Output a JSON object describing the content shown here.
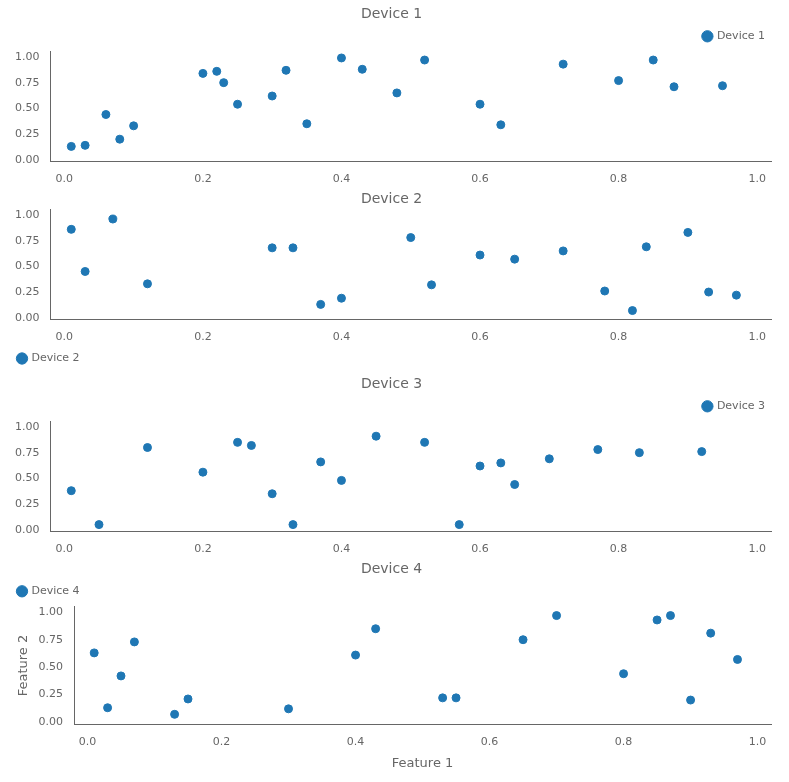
{
  "chart_data": [
    {
      "type": "scatter",
      "title": "Device 1",
      "x": [
        0.01,
        0.03,
        0.06,
        0.08,
        0.1,
        0.2,
        0.22,
        0.23,
        0.25,
        0.3,
        0.32,
        0.35,
        0.4,
        0.43,
        0.48,
        0.52,
        0.6,
        0.63,
        0.72,
        0.8,
        0.85,
        0.88,
        0.95
      ],
      "series": [
        {
          "name": "Device 1",
          "color": "#1f77b4",
          "marker": "circle",
          "values": [
            0.13,
            0.14,
            0.44,
            0.2,
            0.33,
            0.84,
            0.86,
            0.75,
            0.54,
            0.62,
            0.87,
            0.35,
            0.99,
            0.88,
            0.65,
            0.97,
            0.54,
            0.34,
            0.93,
            0.77,
            0.97,
            0.71,
            0.72
          ]
        }
      ],
      "xlim": [
        -0.02,
        1.02
      ],
      "ylim": [
        -0.02,
        1.05
      ],
      "xticks": [
        {
          "value": 0,
          "label": "0.0"
        },
        0.2,
        0.4,
        0.6,
        0.8,
        {
          "value": 1,
          "label": "1.0"
        }
      ],
      "yticks": [
        {
          "value": 0,
          "label": "0.00"
        },
        0.25,
        {
          "value": 0.5,
          "label": "0.50"
        },
        0.75,
        {
          "value": 1,
          "label": "1.00"
        }
      ],
      "grid": false,
      "legend": "upper right"
    },
    {
      "type": "scatter",
      "title": "Device 2",
      "x": [
        0.01,
        0.03,
        0.07,
        0.12,
        0.3,
        0.33,
        0.37,
        0.4,
        0.5,
        0.53,
        0.6,
        0.65,
        0.72,
        0.78,
        0.82,
        0.84,
        0.9,
        0.93,
        0.97
      ],
      "series": [
        {
          "name": "Device 2",
          "color": "#1f77b4",
          "marker": "circle",
          "values": [
            0.86,
            0.45,
            0.96,
            0.33,
            0.68,
            0.68,
            0.13,
            0.19,
            0.78,
            0.32,
            0.61,
            0.57,
            0.65,
            0.26,
            0.07,
            0.69,
            0.83,
            0.25,
            0.22
          ]
        }
      ],
      "xlim": [
        -0.02,
        1.02
      ],
      "ylim": [
        -0.02,
        1.05
      ],
      "xticks": [
        {
          "value": 0,
          "label": "0.0"
        },
        0.2,
        0.4,
        0.6,
        0.8,
        {
          "value": 1,
          "label": "1.0"
        }
      ],
      "yticks": [
        {
          "value": 0,
          "label": "0.00"
        },
        0.25,
        {
          "value": 0.5,
          "label": "0.50"
        },
        0.75,
        {
          "value": 1,
          "label": "1.00"
        }
      ],
      "grid": false,
      "legend": "lower left"
    },
    {
      "type": "scatter",
      "title": "Device 3",
      "x": [
        0.01,
        0.05,
        0.12,
        0.2,
        0.25,
        0.27,
        0.3,
        0.33,
        0.37,
        0.4,
        0.45,
        0.52,
        0.57,
        0.6,
        0.63,
        0.65,
        0.7,
        0.77,
        0.83,
        0.92
      ],
      "series": [
        {
          "name": "Device 3",
          "color": "#1f77b4",
          "marker": "circle",
          "values": [
            0.38,
            0.05,
            0.8,
            0.56,
            0.85,
            0.82,
            0.35,
            0.05,
            0.66,
            0.48,
            0.91,
            0.85,
            0.05,
            0.62,
            0.65,
            0.44,
            0.69,
            0.78,
            0.75,
            0.76
          ]
        }
      ],
      "xlim": [
        -0.02,
        1.02
      ],
      "ylim": [
        -0.02,
        1.05
      ],
      "xticks": [
        {
          "value": 0,
          "label": "0.0"
        },
        0.2,
        0.4,
        0.6,
        0.8,
        {
          "value": 1,
          "label": "1.0"
        }
      ],
      "yticks": [
        {
          "value": 0,
          "label": "0.00"
        },
        0.25,
        {
          "value": 0.5,
          "label": "0.50"
        },
        0.75,
        {
          "value": 1,
          "label": "1.00"
        }
      ],
      "grid": false,
      "legend": "upper right"
    },
    {
      "type": "scatter",
      "title": "Device 4",
      "xlabel": "Feature 1",
      "ylabel": "Feature 2",
      "x": [
        0.01,
        0.03,
        0.05,
        0.07,
        0.13,
        0.15,
        0.3,
        0.4,
        0.43,
        0.53,
        0.55,
        0.65,
        0.7,
        0.8,
        0.85,
        0.87,
        0.9,
        0.93,
        0.97
      ],
      "series": [
        {
          "name": "Device 4",
          "color": "#1f77b4",
          "marker": "circle",
          "values": [
            0.63,
            0.13,
            0.42,
            0.73,
            0.07,
            0.21,
            0.12,
            0.61,
            0.85,
            0.22,
            0.22,
            0.75,
            0.97,
            0.44,
            0.93,
            0.97,
            0.2,
            0.81,
            0.57
          ]
        }
      ],
      "xlim": [
        -0.02,
        1.02
      ],
      "ylim": [
        -0.02,
        1.05
      ],
      "xticks": [
        {
          "value": 0,
          "label": "0.0"
        },
        0.2,
        0.4,
        0.6,
        0.8,
        {
          "value": 1,
          "label": "1.0"
        }
      ],
      "yticks": [
        {
          "value": 0,
          "label": "0.00"
        },
        0.25,
        {
          "value": 0.5,
          "label": "0.50"
        },
        0.75,
        {
          "value": 1,
          "label": "1.00"
        }
      ],
      "grid": false,
      "legend": "upper left"
    }
  ]
}
